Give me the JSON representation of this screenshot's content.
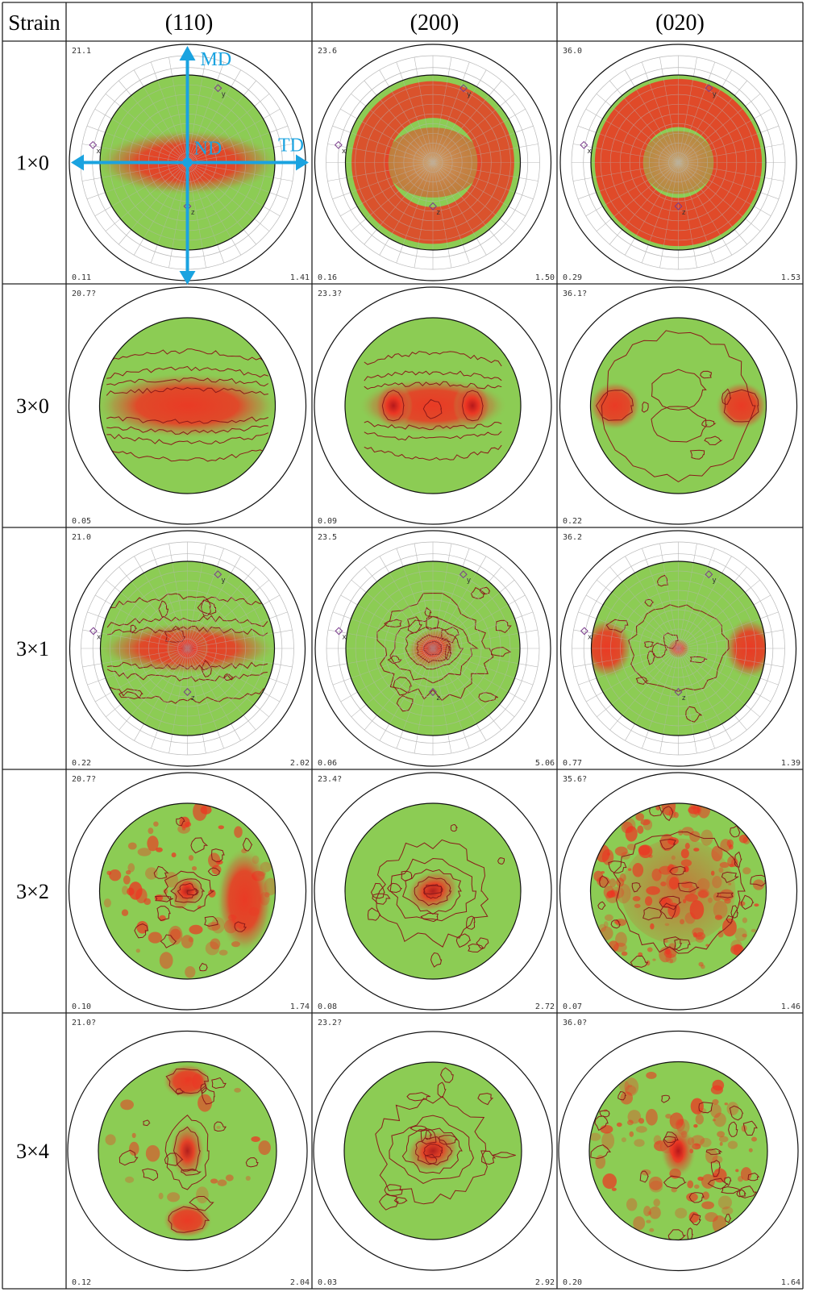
{
  "table": {
    "header": {
      "strain_label": "Strain",
      "planes": [
        "(110)",
        "(200)",
        "(020)"
      ]
    },
    "rows": [
      {
        "strain": "1×0",
        "cells": [
          {
            "max": "21.1",
            "min": "0.11",
            "right": "1.41",
            "texture": "band",
            "grid": true,
            "contours": false,
            "markers": [
              "y",
              "x",
              "z"
            ]
          },
          {
            "max": "23.6",
            "min": "0.16",
            "right": "1.50",
            "texture": "ring",
            "grid": true,
            "contours": false,
            "markers": [
              "y",
              "x",
              "z"
            ]
          },
          {
            "max": "36.0",
            "min": "0.29",
            "right": "1.53",
            "texture": "wide-ring",
            "grid": true,
            "contours": false,
            "markers": [
              "y",
              "x",
              "z"
            ]
          }
        ]
      },
      {
        "strain": "3×0",
        "cells": [
          {
            "max": "20.7?",
            "min": "0.05",
            "right": "",
            "texture": "band",
            "grid": false,
            "contours": true,
            "markers": []
          },
          {
            "max": "23.3?",
            "min": "0.09",
            "right": "",
            "texture": "triad",
            "grid": false,
            "contours": true,
            "markers": []
          },
          {
            "max": "36.1?",
            "min": "0.22",
            "right": "",
            "texture": "lobes",
            "grid": false,
            "contours": true,
            "markers": []
          }
        ]
      },
      {
        "strain": "3×1",
        "cells": [
          {
            "max": "21.0",
            "min": "0.22",
            "right": "2.02",
            "texture": "band-center",
            "grid": true,
            "contours": true,
            "markers": [
              "y",
              "x",
              "z"
            ]
          },
          {
            "max": "23.5",
            "min": "0.06",
            "right": "5.06",
            "texture": "center",
            "grid": true,
            "contours": true,
            "markers": [
              "y",
              "x",
              "z"
            ]
          },
          {
            "max": "36.2",
            "min": "0.77",
            "right": "1.39",
            "texture": "lobes-center",
            "grid": true,
            "contours": true,
            "markers": [
              "y",
              "x",
              "z"
            ]
          }
        ]
      },
      {
        "strain": "3×2",
        "cells": [
          {
            "max": "20.7?",
            "min": "0.10",
            "right": "1.74",
            "texture": "patchy-center",
            "grid": false,
            "contours": true,
            "markers": []
          },
          {
            "max": "23.4?",
            "min": "0.08",
            "right": "2.72",
            "texture": "center",
            "grid": false,
            "contours": true,
            "markers": []
          },
          {
            "max": "35.6?",
            "min": "0.07",
            "right": "1.46",
            "texture": "diffuse",
            "grid": false,
            "contours": true,
            "markers": []
          }
        ]
      },
      {
        "strain": "3×4",
        "cells": [
          {
            "max": "21.0?",
            "min": "0.12",
            "right": "2.04",
            "texture": "vertical",
            "grid": false,
            "contours": true,
            "markers": []
          },
          {
            "max": "23.2?",
            "min": "0.03",
            "right": "2.92",
            "texture": "center",
            "grid": false,
            "contours": true,
            "markers": []
          },
          {
            "max": "36.0?",
            "min": "0.20",
            "right": "1.64",
            "texture": "diffuse-center",
            "grid": false,
            "contours": true,
            "markers": []
          }
        ]
      }
    ]
  },
  "axes": {
    "md": "MD",
    "td": "TD",
    "nd": "ND",
    "color": "#1aa3e0"
  },
  "colors": {
    "green": "#8ccc54",
    "red": "#ee3322",
    "contour": "#8b1a1a",
    "rim": "#111111",
    "grid": "#b8b8b8",
    "marker": "#7a3c8c"
  }
}
